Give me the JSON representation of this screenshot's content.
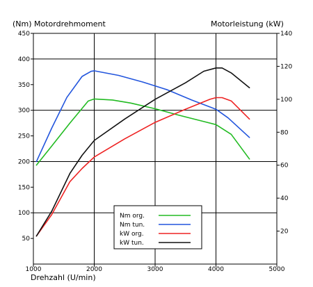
{
  "chart_data": {
    "type": "line",
    "left_axis_title": "(Nm)  Motordrehmoment",
    "right_axis_title": "Motorleistung  (kW)",
    "xlabel": "Drehzahl  (U/min)",
    "xlim": [
      1000,
      5000
    ],
    "ylim_left": [
      0,
      450
    ],
    "ylim_right": [
      0,
      140
    ],
    "x_ticks": [
      1000,
      2000,
      3000,
      4000,
      5000
    ],
    "y_ticks_left": [
      50,
      100,
      150,
      200,
      250,
      300,
      350,
      400,
      450
    ],
    "y_ticks_right": [
      20,
      40,
      60,
      80,
      100,
      120,
      140
    ],
    "grid": true,
    "series": [
      {
        "name": "Nm org.",
        "axis": "left",
        "color": "#22bb22",
        "x": [
          1050,
          1300,
          1600,
          1900,
          2000,
          2300,
          2600,
          3000,
          3400,
          3800,
          4000,
          4250,
          4550
        ],
        "y": [
          193,
          230,
          275,
          318,
          322,
          320,
          314,
          303,
          290,
          278,
          272,
          253,
          205
        ]
      },
      {
        "name": "Nm tun.",
        "axis": "left",
        "color": "#2255dd",
        "x": [
          1050,
          1300,
          1550,
          1800,
          1950,
          2000,
          2400,
          2800,
          3200,
          3600,
          4000,
          4200,
          4550
        ],
        "y": [
          200,
          265,
          325,
          366,
          376,
          377,
          368,
          355,
          340,
          320,
          302,
          285,
          247
        ]
      },
      {
        "name": "kW org.",
        "axis": "right",
        "color": "#ee2222",
        "x": [
          1050,
          1300,
          1600,
          1800,
          2000,
          2500,
          3000,
          3500,
          3900,
          4000,
          4100,
          4250,
          4550
        ],
        "y": [
          17,
          30,
          50,
          58,
          65,
          76,
          86,
          94,
          100,
          101,
          101,
          99,
          88
        ]
      },
      {
        "name": "kW tun.",
        "axis": "right",
        "color": "#111111",
        "x": [
          1050,
          1300,
          1600,
          1800,
          2000,
          2500,
          3000,
          3500,
          3800,
          4000,
          4100,
          4250,
          4550
        ],
        "y": [
          17,
          32,
          55,
          66,
          75,
          88,
          100,
          110,
          117,
          119,
          119,
          116,
          107
        ]
      }
    ]
  }
}
